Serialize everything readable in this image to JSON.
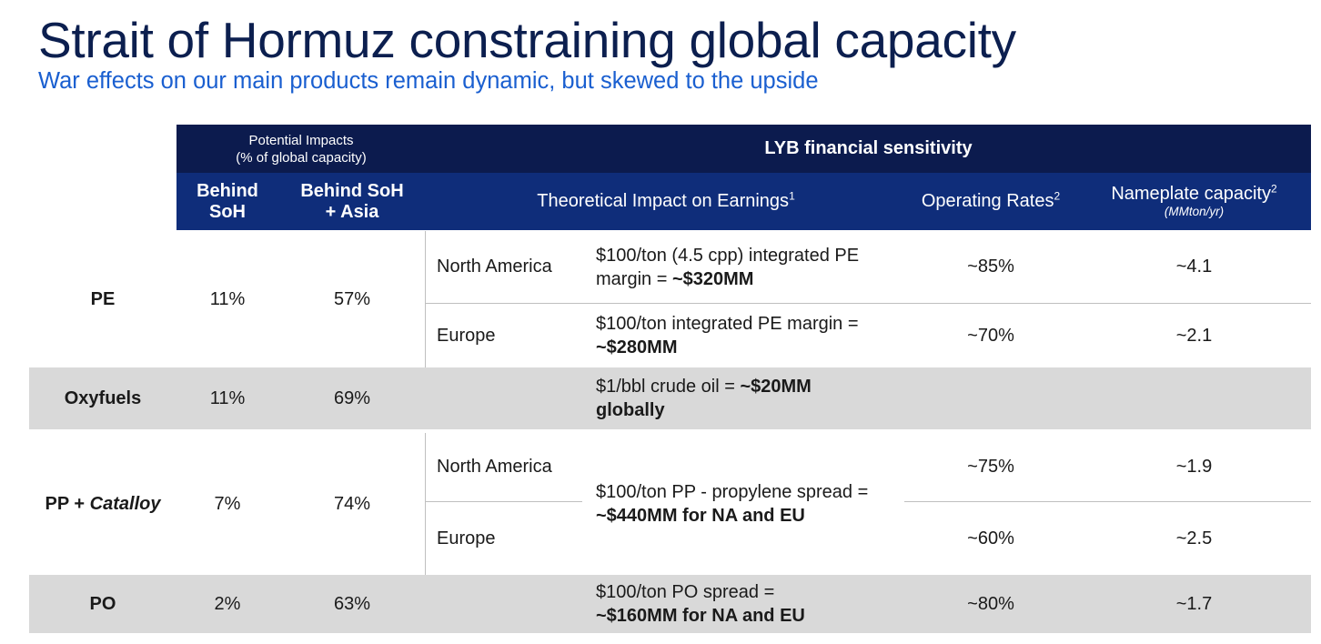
{
  "title": "Strait of Hormuz constraining global capacity",
  "subtitle": "War effects on our main products remain dynamic, but skewed to the upside",
  "header": {
    "potential_impacts_title": "Potential Impacts",
    "potential_impacts_sub": "(% of global capacity)",
    "lyb_title": "LYB financial sensitivity",
    "col_behind_soh": "Behind SoH",
    "col_behind_soh_asia": "Behind SoH + Asia",
    "col_theoretical": "Theoretical Impact on Earnings",
    "col_theoretical_sup": "1",
    "col_operating": "Operating Rates",
    "col_operating_sup": "2",
    "col_nameplate": "Nameplate capacity",
    "col_nameplate_sup": "2",
    "col_nameplate_unit": "(MMton/yr)"
  },
  "rows": {
    "pe": {
      "product": "PE",
      "behind_soh": "11%",
      "behind_soh_asia": "57%",
      "na": {
        "region": "North America",
        "impact_text": "$100/ton (4.5 cpp) integrated PE margin = ",
        "impact_bold": "~$320MM",
        "operating": "~85%",
        "capacity": "~4.1"
      },
      "eu": {
        "region": "Europe",
        "impact_text": "$100/ton integrated PE margin = ",
        "impact_bold": "~$280MM",
        "operating": "~70%",
        "capacity": "~2.1"
      }
    },
    "oxyfuels": {
      "product": "Oxyfuels",
      "behind_soh": "11%",
      "behind_soh_asia": "69%",
      "impact_text": "$1/bbl crude oil = ",
      "impact_bold": "~$20MM globally"
    },
    "pp": {
      "product_main": "PP + ",
      "product_italic": "Catalloy",
      "behind_soh": "7%",
      "behind_soh_asia": "74%",
      "impact_text": "$100/ton PP - propylene spread = ",
      "impact_bold": "~$440MM for NA and EU",
      "na": {
        "region": "North America",
        "operating": "~75%",
        "capacity": "~1.9"
      },
      "eu": {
        "region": "Europe",
        "operating": "~60%",
        "capacity": "~2.5"
      }
    },
    "po": {
      "product": "PO",
      "behind_soh": "2%",
      "behind_soh_asia": "63%",
      "impact_text": "$100/ton PO spread = ",
      "impact_bold": "~$160MM for NA and EU",
      "operating": "~80%",
      "capacity": "~1.7"
    }
  }
}
